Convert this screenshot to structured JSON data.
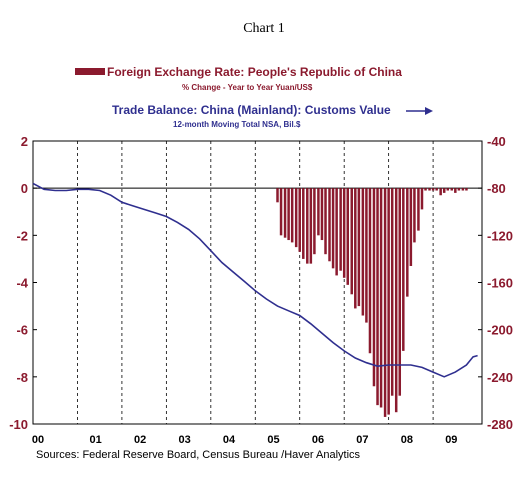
{
  "chart_data": {
    "type": "bar+line",
    "title": "Chart 1",
    "series": [
      {
        "name": "Foreign Exchange Rate: People's Republic of China",
        "subtitle": "% Change - Year to Year    Yuan/US$",
        "type": "bar",
        "color": "#8b1a2e",
        "axis": "left",
        "x": [
          2005.5,
          2005.58,
          2005.67,
          2005.75,
          2005.83,
          2005.92,
          2006.0,
          2006.08,
          2006.17,
          2006.25,
          2006.33,
          2006.42,
          2006.5,
          2006.58,
          2006.67,
          2006.75,
          2006.83,
          2006.92,
          2007.0,
          2007.08,
          2007.17,
          2007.25,
          2007.33,
          2007.42,
          2007.5,
          2007.58,
          2007.67,
          2007.75,
          2007.83,
          2007.92,
          2008.0,
          2008.08,
          2008.17,
          2008.25,
          2008.33,
          2008.42,
          2008.5,
          2008.58,
          2008.67,
          2008.75,
          2008.83,
          2008.92,
          2009.0,
          2009.08,
          2009.17,
          2009.25,
          2009.33,
          2009.42,
          2009.5,
          2009.58,
          2009.67,
          2009.75
        ],
        "values": [
          -0.6,
          -2.0,
          -2.1,
          -2.2,
          -2.3,
          -2.5,
          -2.7,
          -3.0,
          -3.2,
          -3.2,
          -2.8,
          -2.0,
          -2.2,
          -2.8,
          -3.1,
          -3.4,
          -3.7,
          -3.5,
          -3.8,
          -4.1,
          -4.5,
          -5.1,
          -5.0,
          -5.4,
          -5.7,
          -7.0,
          -8.4,
          -9.2,
          -9.3,
          -9.7,
          -9.6,
          -8.8,
          -9.5,
          -8.8,
          -6.9,
          -4.6,
          -3.3,
          -2.3,
          -1.8,
          -0.9,
          -0.1,
          -0.1,
          -0.1,
          -0.1,
          -0.3,
          -0.2,
          -0.1,
          -0.1,
          -0.2,
          -0.1,
          -0.1,
          -0.1
        ]
      },
      {
        "name": "Trade Balance: China (Mainland): Customs Value",
        "subtitle": "12-month Moving Total     NSA, Bil.$",
        "type": "line",
        "color": "#2f2f8f",
        "axis": "right",
        "x": [
          2000.0,
          2000.25,
          2000.5,
          2000.75,
          2001.0,
          2001.25,
          2001.5,
          2001.75,
          2002.0,
          2002.25,
          2002.5,
          2002.75,
          2003.0,
          2003.25,
          2003.5,
          2003.75,
          2004.0,
          2004.25,
          2004.5,
          2004.75,
          2005.0,
          2005.25,
          2005.5,
          2005.75,
          2006.0,
          2006.25,
          2006.5,
          2006.75,
          2007.0,
          2007.25,
          2007.5,
          2007.75,
          2008.0,
          2008.25,
          2008.5,
          2008.75,
          2009.0,
          2009.25,
          2009.5,
          2009.75,
          2009.9,
          2010.0
        ],
        "values": [
          -76,
          -81,
          -82,
          -82,
          -81,
          -81,
          -82,
          -86,
          -92,
          -95,
          -98,
          -101,
          -104,
          -109,
          -115,
          -123,
          -133,
          -143,
          -151,
          -159,
          -167,
          -174,
          -180,
          -184,
          -188,
          -195,
          -203,
          -211,
          -218,
          -224,
          -228,
          -231,
          -230,
          -230,
          -230,
          -232,
          -236,
          -240,
          -236,
          -230,
          -223,
          -222
        ]
      }
    ],
    "x_tick_labels": [
      "00",
      "01",
      "02",
      "03",
      "04",
      "05",
      "06",
      "07",
      "08",
      "09"
    ],
    "xlim": [
      2000,
      2010.1
    ],
    "ylim_left": [
      -10,
      2
    ],
    "ylim_right": [
      -280,
      -40
    ],
    "y_ticks_left": [
      2,
      0,
      -2,
      -4,
      -6,
      -8,
      -10
    ],
    "y_ticks_right": [
      -40,
      -80,
      -120,
      -160,
      -200,
      -240,
      -280
    ],
    "grid": "vertical dashed at each year",
    "zero_line": true,
    "legend_position": "top"
  },
  "source": "Sources:  Federal Reserve Board, Census Bureau /Haver Analytics"
}
